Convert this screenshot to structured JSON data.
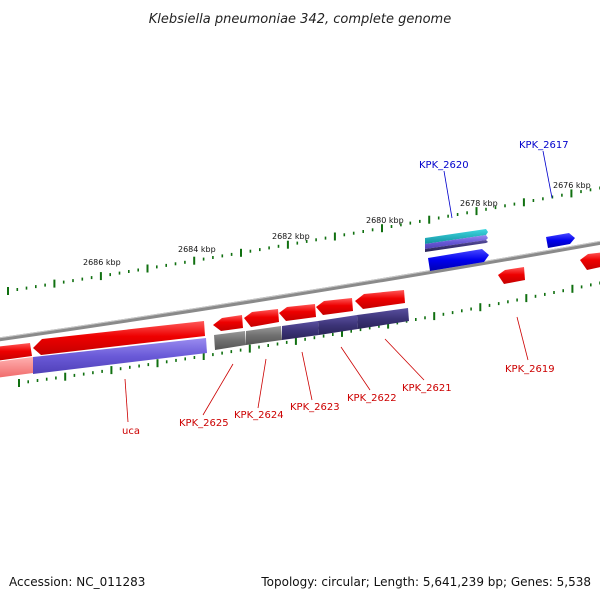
{
  "title": "Klebsiella pneumoniae 342, complete genome",
  "footer": {
    "accession": "Accession: NC_011283",
    "summary": "Topology: circular; Length: 5,641,239 bp; Genes: 5,538"
  },
  "colors": {
    "gene_red": "#f00000",
    "gene_blue": "#0000f0",
    "cds_purple": "#6a5ad8",
    "cds_dark": "#3c3478",
    "cds_gray": "#707070",
    "backbone": "#888888",
    "ticks": "#107010",
    "label_red": "#cc0000",
    "label_blue": "#0000cc",
    "teal": "#18b0b8"
  },
  "kbp_labels": [
    "2676 kbp",
    "2678 kbp",
    "2680 kbp",
    "2682 kbp",
    "2684 kbp",
    "2686 kbp"
  ],
  "gene_labels": [
    {
      "text": "uca",
      "color": "red"
    },
    {
      "text": "KPK_2625",
      "color": "red"
    },
    {
      "text": "KPK_2624",
      "color": "red"
    },
    {
      "text": "KPK_2623",
      "color": "red"
    },
    {
      "text": "KPK_2622",
      "color": "red"
    },
    {
      "text": "KPK_2621",
      "color": "red"
    },
    {
      "text": "KPK_2619",
      "color": "red"
    },
    {
      "text": "KPK_2620",
      "color": "blue"
    },
    {
      "text": "KPK_2617",
      "color": "blue"
    }
  ]
}
